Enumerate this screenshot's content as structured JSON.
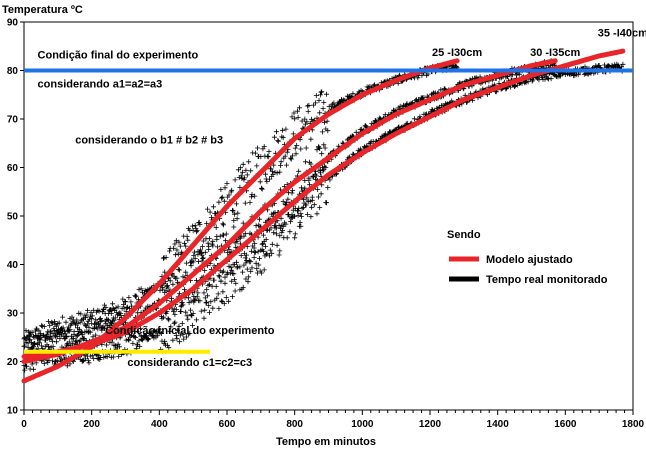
{
  "chart_data": {
    "type": "scatter",
    "ylabel": "Temperatura ºC",
    "xlabel": "Tempo em minutos",
    "xlim": [
      0,
      1800
    ],
    "ylim": [
      10,
      90
    ],
    "x_ticks": [
      0,
      200,
      400,
      600,
      800,
      1000,
      1200,
      1400,
      1600,
      1800
    ],
    "y_ticks": [
      10,
      20,
      30,
      40,
      50,
      60,
      70,
      80,
      90
    ],
    "grid": false,
    "reference_lines": [
      {
        "label_top": "Condição final do experimento",
        "label_bottom": "considerando a1=a2=a3",
        "y": 80,
        "x_start": 0,
        "x_end": 1800,
        "color": "#1e73e8"
      },
      {
        "label_top": "Condição inicial do experimento",
        "label_bottom": "considerando c1=c2=c3",
        "y": 22,
        "x_start": 0,
        "x_end": 550,
        "color": "#ffeb00"
      }
    ],
    "annotations": [
      {
        "text": "considerando o b1 # b2 # b3",
        "x": 370,
        "y": 65
      },
      {
        "text": "25 -I30cm",
        "x": 1280,
        "y": 83
      },
      {
        "text": "30 -I35cm",
        "x": 1570,
        "y": 83
      },
      {
        "text": "35 -I40cm",
        "x": 1770,
        "y": 87
      }
    ],
    "series": [
      {
        "name": "Modelo ajustado",
        "role": "fitted",
        "color": "#e8262a",
        "curves": [
          {
            "x": [
              0,
              100,
              200,
              300,
              400,
              500,
              600,
              700,
              800,
              900,
              1000,
              1100,
              1200,
              1280
            ],
            "y": [
              16,
              19,
              23,
              29,
              36,
              44,
              52,
              59,
              66,
              71,
              75,
              78,
              80.5,
              82
            ]
          },
          {
            "x": [
              0,
              100,
              200,
              300,
              400,
              500,
              600,
              700,
              800,
              900,
              1000,
              1100,
              1200,
              1300,
              1400,
              1500,
              1570
            ],
            "y": [
              20,
              21.5,
              24,
              27,
              32,
              38,
              44,
              51,
              57,
              62,
              67,
              71,
              74,
              77,
              79,
              81,
              82
            ]
          },
          {
            "x": [
              0,
              100,
              200,
              300,
              400,
              500,
              600,
              700,
              800,
              900,
              1000,
              1100,
              1200,
              1300,
              1400,
              1500,
              1600,
              1700,
              1770
            ],
            "y": [
              21,
              22,
              23.5,
              26,
              30,
              35,
              41,
              47,
              53,
              58.5,
              63,
              67,
              70.5,
              74,
              76.5,
              79,
              81,
              83,
              84
            ]
          }
        ]
      },
      {
        "name": "Tempo real monitorado",
        "role": "observed",
        "color": "#000000",
        "curves": [
          {
            "x": [
              0,
              100,
              200,
              300,
              400,
              500,
              600,
              700,
              800,
              900,
              1000,
              1100,
              1200,
              1280
            ],
            "y": [
              24,
              27,
              28.5,
              31,
              36,
              44,
              52,
              60,
              67,
              72,
              75.5,
              78,
              80,
              81
            ]
          },
          {
            "x": [
              0,
              100,
              200,
              300,
              400,
              500,
              600,
              700,
              800,
              900,
              1000,
              1100,
              1200,
              1300,
              1400,
              1500,
              1570
            ],
            "y": [
              23,
              24.5,
              26,
              28,
              32,
              37,
              42,
              47,
              54,
              62,
              67.5,
              71.5,
              74.5,
              77,
              79,
              80.5,
              81.5
            ]
          },
          {
            "x": [
              0,
              100,
              200,
              300,
              400,
              500,
              600,
              700,
              800,
              900,
              1000,
              1100,
              1200,
              1300,
              1400,
              1500,
              1600,
              1700,
              1770
            ],
            "y": [
              20,
              21,
              22,
              23.5,
              26,
              31,
              37,
              43,
              50,
              58,
              63.5,
              67.5,
              71,
              74,
              76.5,
              78.5,
              79.5,
              80.3,
              80.6
            ]
          }
        ]
      }
    ],
    "legend": {
      "title": "Sendo",
      "position": "right",
      "entries": [
        {
          "label": "Modelo ajustado",
          "color": "#e8262a"
        },
        {
          "label": "Tempo real monitorado",
          "color": "#000000"
        }
      ]
    }
  }
}
